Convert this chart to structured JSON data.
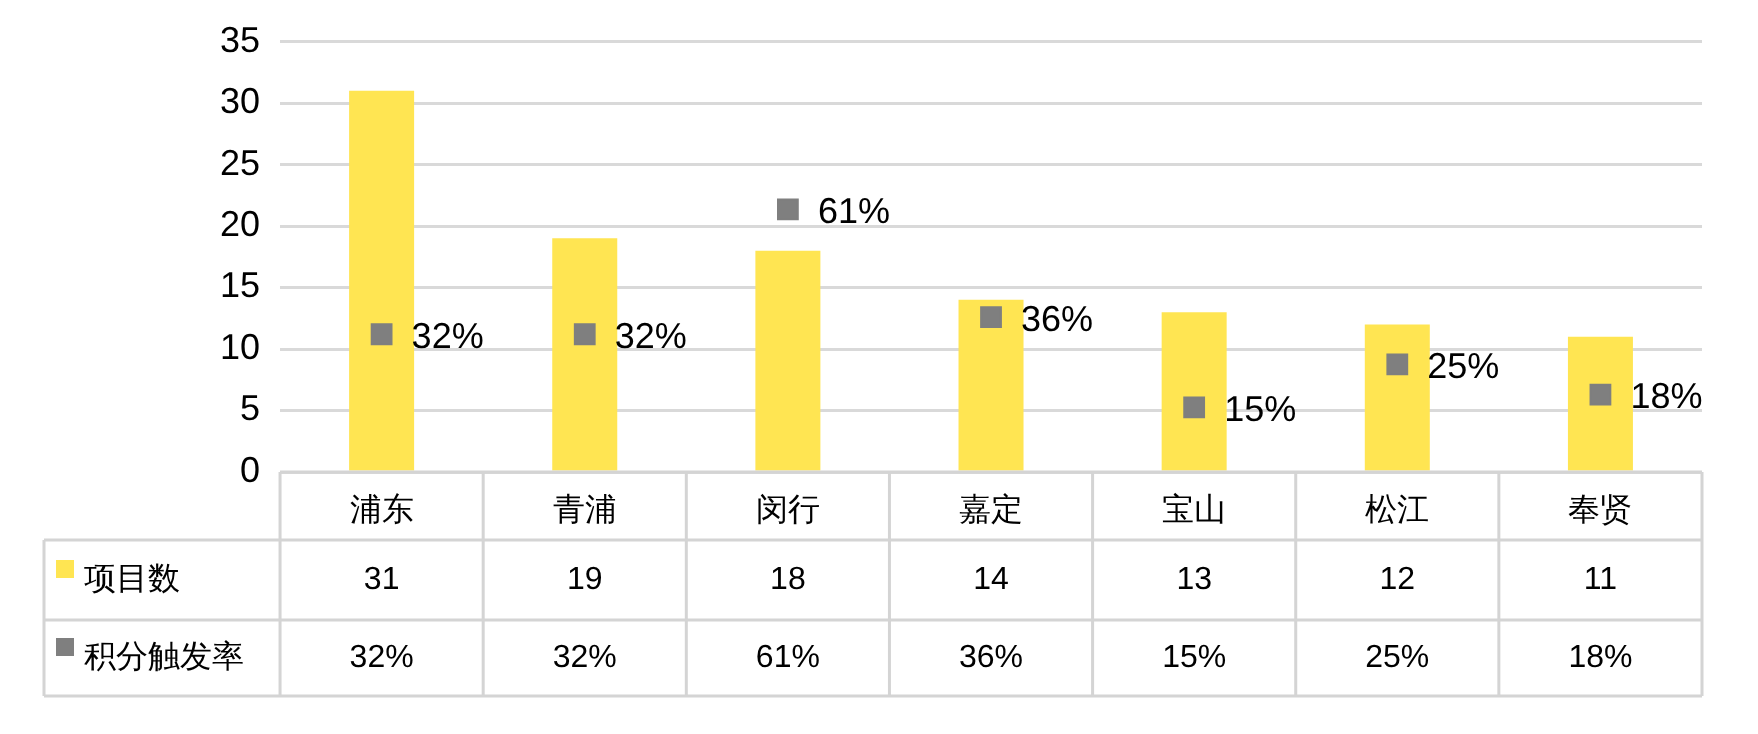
{
  "chart_data": {
    "type": "bar",
    "categories": [
      "浦东",
      "青浦",
      "闵行",
      "嘉定",
      "宝山",
      "松江",
      "奉贤"
    ],
    "series": [
      {
        "name": "项目数",
        "color": "#ffe552",
        "values": [
          31,
          19,
          18,
          14,
          13,
          12,
          11
        ],
        "value_labels": [
          "31",
          "19",
          "18",
          "14",
          "13",
          "12",
          "11"
        ]
      },
      {
        "name": "积分触发率",
        "type": "scatter",
        "axis": "y2",
        "color": "#7f7f7f",
        "values": [
          32,
          32,
          61,
          36,
          15,
          25,
          18
        ],
        "value_labels": [
          "32%",
          "32%",
          "61%",
          "36%",
          "15%",
          "25%",
          "18%"
        ]
      }
    ],
    "ylim": [
      0,
      35
    ],
    "yticks": [
      0,
      5,
      10,
      15,
      20,
      25,
      30,
      35
    ],
    "y2lim": [
      0,
      100
    ],
    "grid": "y",
    "legend": "bottom",
    "marker": "square",
    "tick_labels": "xy"
  }
}
